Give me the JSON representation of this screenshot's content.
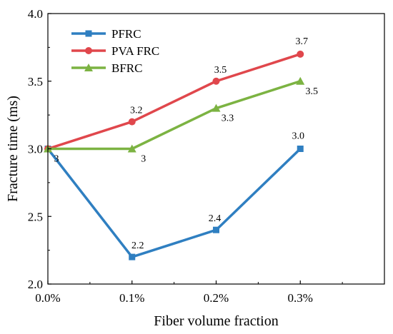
{
  "chart_data": {
    "type": "line",
    "title": "",
    "xlabel": "Fiber volume fraction",
    "ylabel": "Fracture time (ms)",
    "categories": [
      "0.0%",
      "0.1%",
      "0.2%",
      "0.3%"
    ],
    "ylim": [
      2.0,
      4.0
    ],
    "yticks": [
      "2.0",
      "2.5",
      "3.0",
      "3.5",
      "4.0"
    ],
    "grid": false,
    "legend_position": "top-left",
    "series": [
      {
        "name": "PFRC",
        "color": "#2f7fc1",
        "marker": "square",
        "values": [
          3.0,
          2.2,
          2.4,
          3.0
        ],
        "labels": [
          "3",
          "2.2",
          "2.4",
          "3.0"
        ]
      },
      {
        "name": "PVA FRC",
        "color": "#e0474c",
        "marker": "circle",
        "values": [
          3.0,
          3.2,
          3.5,
          3.7
        ],
        "labels": [
          "",
          "3.2",
          "3.5",
          "3.7"
        ]
      },
      {
        "name": "BFRC",
        "color": "#7cb342",
        "marker": "triangle",
        "values": [
          3.0,
          3.0,
          3.3,
          3.5
        ],
        "labels": [
          "",
          "3",
          "3.3",
          "3.5"
        ]
      }
    ]
  }
}
